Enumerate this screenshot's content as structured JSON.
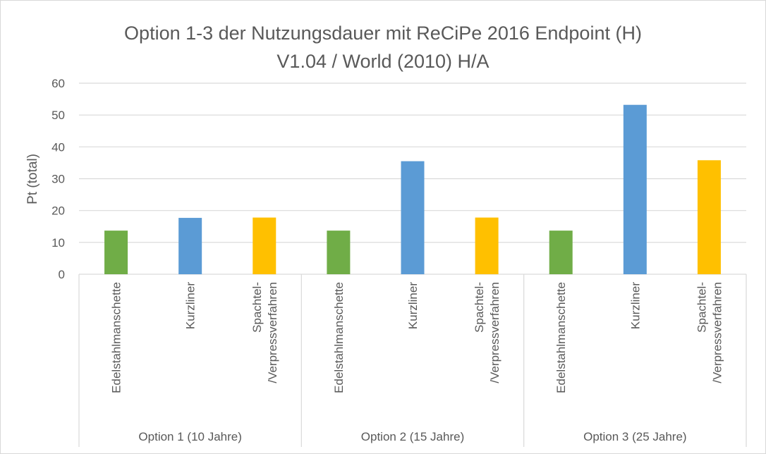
{
  "chart_data": {
    "type": "bar",
    "title_lines": [
      "Option 1-3 der Nutzungsdauer mit ReCiPe 2016 Endpoint (H)",
      "V1.04 / World (2010) H/A"
    ],
    "ylabel": "Pt (total)",
    "xlabel": "",
    "ylim": [
      0,
      60
    ],
    "yticks": [
      0,
      10,
      20,
      30,
      40,
      50,
      60
    ],
    "grid": true,
    "groups": [
      {
        "label": "Option 1 (10 Jahre)",
        "categories": [
          "Edelstahlmanschette",
          "Kurzliner",
          "Spachtel-\n/Verpressverfahren"
        ],
        "values": [
          13.7,
          17.7,
          17.8
        ]
      },
      {
        "label": "Option 2 (15 Jahre)",
        "categories": [
          "Edelstahlmanschette",
          "Kurzliner",
          "Spachtel-\n/Verpressverfahren"
        ],
        "values": [
          13.7,
          35.5,
          17.8
        ]
      },
      {
        "label": "Option 3 (25 Jahre)",
        "categories": [
          "Edelstahlmanschette",
          "Kurzliner",
          "Spachtel-\n/Verpressverfahren"
        ],
        "values": [
          13.7,
          53.2,
          35.8
        ]
      }
    ],
    "colors": {
      "Edelstahlmanschette": "#70AD47",
      "Kurzliner": "#5B9BD5",
      "Spachtel-\n/Verpressverfahren": "#FFC000"
    }
  }
}
